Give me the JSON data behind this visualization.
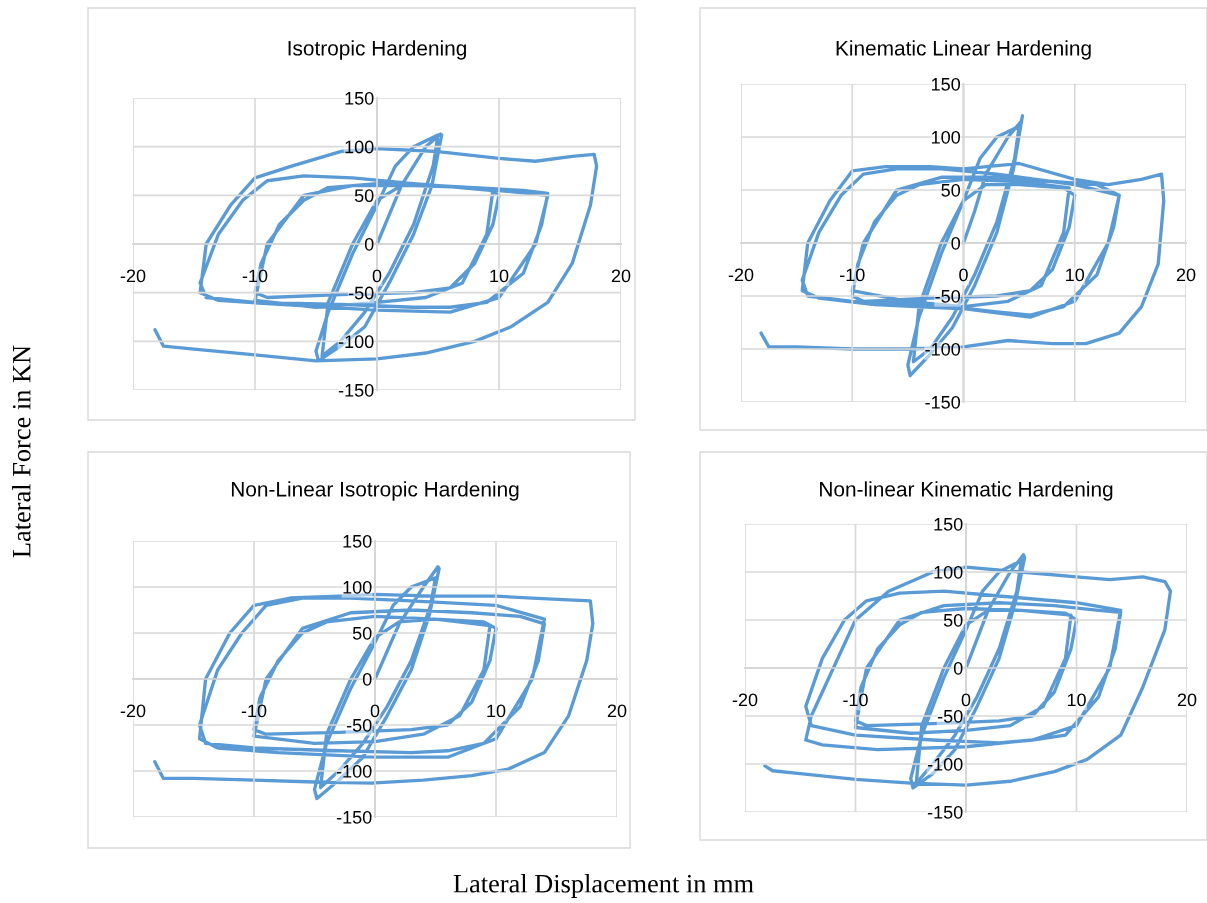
{
  "chart_data": [
    {
      "type": "line",
      "title": "Isotropic Hardening",
      "ylabel": "Lateral Force in KN",
      "xlim": [
        -20,
        20
      ],
      "ylim": [
        -150,
        150
      ],
      "xticks": [
        -20,
        -10,
        0,
        10,
        20
      ],
      "yticks": [
        -150,
        -100,
        -50,
        0,
        50,
        100,
        150
      ],
      "grid": true,
      "legend": false,
      "series": [
        {
          "color": "#5b9bd5",
          "x": [
            0,
            1,
            2,
            4,
            5.2,
            5.3,
            4.5,
            3,
            1,
            -1,
            -3,
            -4.8,
            -5,
            -4,
            -2,
            0,
            1.5,
            3,
            5,
            4.6,
            3,
            1,
            -1,
            -3,
            -4.5,
            -4,
            -2,
            0,
            2,
            5,
            9,
            10,
            9.5,
            8,
            6,
            3,
            -3,
            -9,
            -10,
            -9.5,
            -8,
            -6,
            -4,
            0,
            5,
            9.5,
            9,
            7,
            4,
            0,
            -5,
            -10,
            -9,
            -6,
            -2,
            3,
            8,
            12,
            14,
            13.5,
            12,
            9,
            6,
            3,
            -3,
            -10,
            -14,
            -14.5,
            -13,
            -11,
            -9,
            -6,
            -2,
            3,
            10,
            14,
            13,
            10,
            6,
            0,
            -8,
            -13,
            -14.5,
            -14,
            -12,
            -10,
            -7,
            -3,
            0,
            5,
            10,
            13,
            16,
            17.8,
            18,
            17.5,
            16,
            14,
            11,
            8,
            4,
            0,
            -5,
            -10,
            -15,
            -17.5,
            -18.2
          ],
          "values": [
            0,
            30,
            60,
            100,
            113,
            112,
            60,
            10,
            -40,
            -85,
            -105,
            -120,
            -110,
            -70,
            -10,
            40,
            80,
            100,
            112,
            80,
            20,
            -30,
            -70,
            -100,
            -115,
            -60,
            0,
            45,
            60,
            60,
            57,
            50,
            20,
            -20,
            -45,
            -50,
            -52,
            -55,
            -50,
            -20,
            20,
            45,
            58,
            62,
            60,
            55,
            10,
            -40,
            -55,
            -60,
            -65,
            -58,
            0,
            50,
            60,
            60,
            58,
            55,
            52,
            20,
            -30,
            -60,
            -65,
            -65,
            -62,
            -60,
            -55,
            -40,
            10,
            45,
            65,
            70,
            68,
            62,
            55,
            50,
            0,
            -55,
            -70,
            -68,
            -62,
            -58,
            -50,
            0,
            40,
            68,
            80,
            95,
            98,
            95,
            88,
            85,
            90,
            92,
            80,
            40,
            -20,
            -60,
            -85,
            -100,
            -112,
            -118,
            -120,
            -114,
            -108,
            -105,
            -88
          ]
        }
      ]
    },
    {
      "type": "line",
      "title": "Kinematic Linear Hardening",
      "xlim": [
        -20,
        20
      ],
      "ylim": [
        -150,
        150
      ],
      "xticks": [
        -20,
        -10,
        0,
        10,
        20
      ],
      "yticks": [
        -150,
        -100,
        -50,
        0,
        50,
        100,
        150
      ],
      "grid": true,
      "legend": false,
      "series": [
        {
          "color": "#5b9bd5",
          "x": [
            0,
            1,
            2,
            4,
            5.2,
            5.3,
            4.5,
            3,
            1,
            -1,
            -3,
            -4.8,
            -5,
            -4,
            -2,
            0,
            1.5,
            3,
            5,
            4.6,
            3,
            1,
            -1,
            -3,
            -4.5,
            -4,
            -2,
            0,
            2,
            5,
            9,
            10,
            9.5,
            8,
            6,
            3,
            -3,
            -9,
            -10,
            -9.5,
            -8,
            -6,
            -4,
            0,
            5,
            9.5,
            9,
            7,
            4,
            0,
            -5,
            -10,
            -9,
            -6,
            -2,
            3,
            8,
            12,
            14,
            13.5,
            12,
            9,
            6,
            3,
            -3,
            -10,
            -14,
            -14.5,
            -13,
            -11,
            -9,
            -6,
            -2,
            3,
            10,
            14,
            13,
            10,
            6,
            0,
            -8,
            -13,
            -14.5,
            -14,
            -12,
            -10,
            -7,
            -3,
            0,
            5,
            10,
            13,
            16,
            17.8,
            18,
            17.5,
            16,
            14,
            11,
            8,
            4,
            0,
            -5,
            -10,
            -15,
            -17.5,
            -18.2
          ],
          "values": [
            0,
            30,
            65,
            100,
            115,
            120,
            70,
            10,
            -40,
            -80,
            -105,
            -125,
            -115,
            -70,
            -10,
            40,
            80,
            100,
            110,
            80,
            20,
            -30,
            -70,
            -100,
            -112,
            -60,
            0,
            40,
            55,
            55,
            52,
            45,
            15,
            -25,
            -45,
            -50,
            -52,
            -55,
            -50,
            -20,
            20,
            45,
            55,
            60,
            58,
            52,
            10,
            -40,
            -55,
            -60,
            -55,
            -45,
            0,
            50,
            62,
            62,
            58,
            55,
            45,
            15,
            -30,
            -60,
            -68,
            -65,
            -58,
            -55,
            -50,
            -35,
            10,
            45,
            65,
            70,
            70,
            65,
            55,
            45,
            0,
            -55,
            -70,
            -62,
            -58,
            -52,
            -45,
            0,
            40,
            68,
            72,
            72,
            70,
            75,
            60,
            55,
            60,
            65,
            40,
            -20,
            -60,
            -85,
            -95,
            -95,
            -92,
            -98,
            -100,
            -100,
            -98,
            -98,
            -85
          ]
        }
      ]
    },
    {
      "type": "line",
      "title": "Non-Linear Isotropic Hardening",
      "xlabel": "Lateral Displacement in mm",
      "xlim": [
        -20,
        20
      ],
      "ylim": [
        -150,
        150
      ],
      "xticks": [
        -20,
        -10,
        0,
        10,
        20
      ],
      "yticks": [
        -150,
        -100,
        -50,
        0,
        50,
        100,
        150
      ],
      "grid": true,
      "legend": false,
      "series": [
        {
          "color": "#5b9bd5",
          "x": [
            0,
            1,
            2,
            4,
            5.2,
            5.3,
            4.5,
            3,
            1,
            -1,
            -3,
            -4.8,
            -5,
            -4,
            -2,
            0,
            1.5,
            3,
            5,
            4.6,
            3,
            1,
            -1,
            -3,
            -4.5,
            -4,
            -2,
            0,
            2,
            5,
            9,
            10,
            9.5,
            8,
            6,
            3,
            -3,
            -9,
            -10,
            -9.5,
            -8,
            -6,
            -4,
            0,
            5,
            9.5,
            9,
            7,
            4,
            0,
            -5,
            -10,
            -9,
            -6,
            -2,
            3,
            8,
            12,
            14,
            13.5,
            12,
            9,
            6,
            3,
            -3,
            -10,
            -14,
            -14.5,
            -13,
            -11,
            -9,
            -6,
            -2,
            3,
            10,
            14,
            13,
            10,
            6,
            0,
            -8,
            -13,
            -14.5,
            -14,
            -12,
            -10,
            -7,
            -3,
            0,
            5,
            10,
            13,
            16,
            17.8,
            18,
            17.5,
            16,
            14,
            11,
            8,
            4,
            0,
            -5,
            -10,
            -15,
            -17.5,
            -18.2
          ],
          "values": [
            0,
            30,
            60,
            100,
            122,
            120,
            70,
            10,
            -40,
            -85,
            -110,
            -130,
            -120,
            -70,
            -10,
            40,
            80,
            100,
            110,
            80,
            20,
            -30,
            -70,
            -100,
            -118,
            -60,
            0,
            45,
            62,
            65,
            62,
            55,
            20,
            -25,
            -50,
            -55,
            -58,
            -60,
            -55,
            -20,
            20,
            50,
            62,
            68,
            65,
            58,
            10,
            -40,
            -60,
            -68,
            -70,
            -62,
            0,
            55,
            72,
            75,
            72,
            68,
            60,
            20,
            -30,
            -70,
            -78,
            -80,
            -78,
            -75,
            -70,
            -50,
            10,
            50,
            80,
            88,
            88,
            85,
            80,
            65,
            0,
            -65,
            -85,
            -85,
            -80,
            -75,
            -65,
            0,
            50,
            80,
            88,
            90,
            92,
            90,
            90,
            88,
            86,
            85,
            60,
            20,
            -40,
            -80,
            -98,
            -105,
            -110,
            -113,
            -112,
            -110,
            -108,
            -108,
            -90
          ]
        }
      ]
    },
    {
      "type": "line",
      "title": "Non-linear Kinematic Hardening",
      "xlim": [
        -20,
        20
      ],
      "ylim": [
        -150,
        150
      ],
      "xticks": [
        -20,
        -10,
        0,
        10,
        20
      ],
      "yticks": [
        -150,
        -100,
        -50,
        0,
        50,
        100,
        150
      ],
      "grid": true,
      "legend": false,
      "series": [
        {
          "color": "#5b9bd5",
          "x": [
            0,
            1,
            2,
            4,
            5.2,
            5.3,
            4.5,
            3,
            1,
            -1,
            -3,
            -4.8,
            -5,
            -4,
            -2,
            0,
            1.5,
            3,
            5,
            4.6,
            3,
            1,
            -1,
            -3,
            -4.5,
            -4,
            -2,
            0,
            2,
            5,
            9,
            10,
            9.5,
            8,
            6,
            3,
            -3,
            -9,
            -10,
            -9.5,
            -8,
            -6,
            -4,
            0,
            5,
            9.5,
            9,
            7,
            4,
            0,
            -5,
            -10,
            -9,
            -6,
            -2,
            3,
            8,
            12,
            14,
            13.5,
            12,
            9,
            6,
            3,
            -3,
            -10,
            -14,
            -14.5,
            -13,
            -11,
            -9,
            -6,
            -2,
            3,
            10,
            14,
            13,
            10,
            6,
            0,
            -8,
            -13,
            -14.5,
            -14,
            -12,
            -10,
            -7,
            -3,
            0,
            5,
            10,
            13,
            16,
            18,
            18.5,
            18,
            16,
            14,
            11,
            8,
            4,
            0,
            -5,
            -10,
            -15,
            -17.5,
            -18.2
          ],
          "values": [
            0,
            30,
            60,
            100,
            118,
            115,
            70,
            10,
            -40,
            -85,
            -110,
            -125,
            -115,
            -70,
            -10,
            40,
            80,
            100,
            112,
            80,
            20,
            -30,
            -70,
            -100,
            -120,
            -60,
            0,
            45,
            60,
            60,
            57,
            50,
            20,
            -25,
            -50,
            -55,
            -58,
            -60,
            -55,
            -20,
            20,
            45,
            58,
            62,
            60,
            55,
            10,
            -40,
            -60,
            -65,
            -68,
            -62,
            0,
            50,
            65,
            68,
            65,
            60,
            58,
            20,
            -30,
            -70,
            -75,
            -78,
            -75,
            -70,
            -60,
            -40,
            10,
            50,
            70,
            78,
            80,
            75,
            68,
            60,
            0,
            -60,
            -75,
            -82,
            -85,
            -80,
            -75,
            -50,
            0,
            50,
            80,
            100,
            105,
            100,
            95,
            92,
            95,
            90,
            80,
            40,
            -20,
            -70,
            -95,
            -108,
            -118,
            -122,
            -120,
            -116,
            -110,
            -107,
            -102
          ]
        }
      ]
    }
  ]
}
